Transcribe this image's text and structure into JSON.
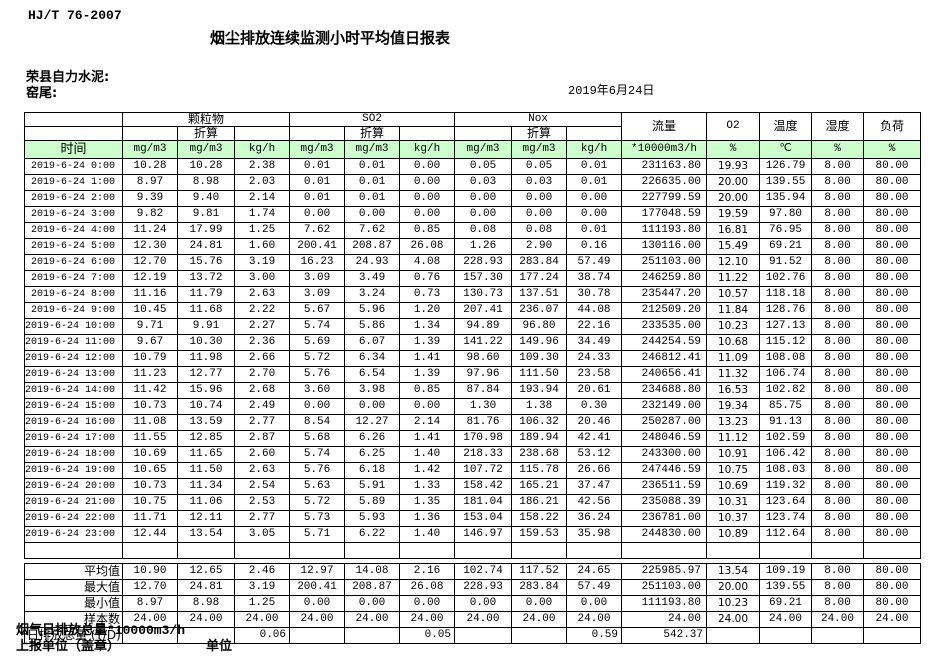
{
  "page": {
    "standard_code": "HJ/T 76-2007",
    "title": "烟尘排放连续监测小时平均值日报表",
    "company": "荣县自力水泥:",
    "location": "窑尾:",
    "date": "2019年6月24日"
  },
  "table": {
    "time_label": "时间",
    "group_particulate": "颗粒物",
    "group_so2": "SO2",
    "group_nox": "Nox",
    "converted_label": "折算",
    "flow_label": "流量",
    "o2_label": "O2",
    "temp_label": "温度",
    "humidity_label": "湿度",
    "load_label": "负荷",
    "units": [
      "mg/m3",
      "mg/m3",
      "kg/h",
      "mg/m3",
      "mg/m3",
      "kg/h",
      "mg/m3",
      "mg/m3",
      "kg/h",
      "*10000m3/h",
      "%",
      "℃",
      "%",
      "%"
    ],
    "rows": [
      {
        "time": "2019-6-24 0:00",
        "values": [
          "10.28",
          "10.28",
          "2.38",
          "0.01",
          "0.01",
          "0.00",
          "0.05",
          "0.05",
          "0.01",
          "231163.80",
          "19.93",
          "126.79",
          "8.00",
          "80.00"
        ]
      },
      {
        "time": "2019-6-24 1:00",
        "values": [
          "8.97",
          "8.98",
          "2.03",
          "0.01",
          "0.01",
          "0.00",
          "0.03",
          "0.03",
          "0.01",
          "226635.00",
          "20.00",
          "139.55",
          "8.00",
          "80.00"
        ]
      },
      {
        "time": "2019-6-24 2:00",
        "values": [
          "9.39",
          "9.40",
          "2.14",
          "0.01",
          "0.01",
          "0.00",
          "0.00",
          "0.00",
          "0.00",
          "227799.59",
          "20.00",
          "135.94",
          "8.00",
          "80.00"
        ]
      },
      {
        "time": "2019-6-24 3:00",
        "values": [
          "9.82",
          "9.81",
          "1.74",
          "0.00",
          "0.00",
          "0.00",
          "0.00",
          "0.00",
          "0.00",
          "177048.59",
          "19.59",
          "97.80",
          "8.00",
          "80.00"
        ]
      },
      {
        "time": "2019-6-24 4:00",
        "values": [
          "11.24",
          "17.99",
          "1.25",
          "7.62",
          "7.62",
          "0.85",
          "0.08",
          "0.08",
          "0.01",
          "111193.80",
          "16.81",
          "76.95",
          "8.00",
          "80.00"
        ]
      },
      {
        "time": "2019-6-24 5:00",
        "values": [
          "12.30",
          "24.81",
          "1.60",
          "200.41",
          "208.87",
          "26.08",
          "1.26",
          "2.90",
          "0.16",
          "130116.00",
          "15.49",
          "69.21",
          "8.00",
          "80.00"
        ]
      },
      {
        "time": "2019-6-24 6:00",
        "values": [
          "12.70",
          "15.76",
          "3.19",
          "16.23",
          "24.93",
          "4.08",
          "228.93",
          "283.84",
          "57.49",
          "251103.00",
          "12.10",
          "91.52",
          "8.00",
          "80.00"
        ]
      },
      {
        "time": "2019-6-24 7:00",
        "values": [
          "12.19",
          "13.72",
          "3.00",
          "3.09",
          "3.49",
          "0.76",
          "157.30",
          "177.24",
          "38.74",
          "246259.80",
          "11.22",
          "102.76",
          "8.00",
          "80.00"
        ]
      },
      {
        "time": "2019-6-24 8:00",
        "values": [
          "11.16",
          "11.79",
          "2.63",
          "3.09",
          "3.24",
          "0.73",
          "130.73",
          "137.51",
          "30.78",
          "235447.20",
          "10.57",
          "118.18",
          "8.00",
          "80.00"
        ]
      },
      {
        "time": "2019-6-24 9:00",
        "values": [
          "10.45",
          "11.68",
          "2.22",
          "5.67",
          "5.96",
          "1.20",
          "207.41",
          "236.07",
          "44.08",
          "212509.20",
          "11.84",
          "128.76",
          "8.00",
          "80.00"
        ]
      },
      {
        "time": "2019-6-24 10:00",
        "values": [
          "9.71",
          "9.91",
          "2.27",
          "5.74",
          "5.86",
          "1.34",
          "94.89",
          "96.80",
          "22.16",
          "233535.00",
          "10.23",
          "127.13",
          "8.00",
          "80.00"
        ]
      },
      {
        "time": "2019-6-24 11:00",
        "values": [
          "9.67",
          "10.30",
          "2.36",
          "5.69",
          "6.07",
          "1.39",
          "141.22",
          "149.96",
          "34.49",
          "244254.59",
          "10.68",
          "115.12",
          "8.00",
          "80.00"
        ]
      },
      {
        "time": "2019-6-24 12:00",
        "values": [
          "10.79",
          "11.98",
          "2.66",
          "5.72",
          "6.34",
          "1.41",
          "98.60",
          "109.30",
          "24.33",
          "246812.41",
          "11.09",
          "108.08",
          "8.00",
          "80.00"
        ]
      },
      {
        "time": "2019-6-24 13:00",
        "values": [
          "11.23",
          "12.77",
          "2.70",
          "5.76",
          "6.54",
          "1.39",
          "97.96",
          "111.50",
          "23.58",
          "240656.41",
          "11.32",
          "106.74",
          "8.00",
          "80.00"
        ]
      },
      {
        "time": "2019-6-24 14:00",
        "values": [
          "11.42",
          "15.96",
          "2.68",
          "3.60",
          "3.98",
          "0.85",
          "87.84",
          "193.94",
          "20.61",
          "234688.80",
          "16.53",
          "102.82",
          "8.00",
          "80.00"
        ]
      },
      {
        "time": "2019-6-24 15:00",
        "values": [
          "10.73",
          "10.74",
          "2.49",
          "0.00",
          "0.00",
          "0.00",
          "1.30",
          "1.38",
          "0.30",
          "232149.00",
          "19.34",
          "85.75",
          "8.00",
          "80.00"
        ]
      },
      {
        "time": "2019-6-24 16:00",
        "values": [
          "11.08",
          "13.59",
          "2.77",
          "8.54",
          "12.27",
          "2.14",
          "81.76",
          "106.32",
          "20.46",
          "250287.00",
          "13.23",
          "91.13",
          "8.00",
          "80.00"
        ]
      },
      {
        "time": "2019-6-24 17:00",
        "values": [
          "11.55",
          "12.85",
          "2.87",
          "5.68",
          "6.26",
          "1.41",
          "170.98",
          "189.94",
          "42.41",
          "248046.59",
          "11.12",
          "102.59",
          "8.00",
          "80.00"
        ]
      },
      {
        "time": "2019-6-24 18:00",
        "values": [
          "10.69",
          "11.65",
          "2.60",
          "5.74",
          "6.25",
          "1.40",
          "218.33",
          "238.68",
          "53.12",
          "243300.00",
          "10.91",
          "106.42",
          "8.00",
          "80.00"
        ]
      },
      {
        "time": "2019-6-24 19:00",
        "values": [
          "10.65",
          "11.50",
          "2.63",
          "5.76",
          "6.18",
          "1.42",
          "107.72",
          "115.78",
          "26.66",
          "247446.59",
          "10.75",
          "108.03",
          "8.00",
          "80.00"
        ]
      },
      {
        "time": "2019-6-24 20:00",
        "values": [
          "10.73",
          "11.34",
          "2.54",
          "5.63",
          "5.91",
          "1.33",
          "158.42",
          "165.21",
          "37.47",
          "236511.59",
          "10.69",
          "119.32",
          "8.00",
          "80.00"
        ]
      },
      {
        "time": "2019-6-24 21:00",
        "values": [
          "10.75",
          "11.06",
          "2.53",
          "5.72",
          "5.89",
          "1.35",
          "181.04",
          "186.21",
          "42.56",
          "235088.39",
          "10.31",
          "123.64",
          "8.00",
          "80.00"
        ]
      },
      {
        "time": "2019-6-24 22:00",
        "values": [
          "11.71",
          "12.11",
          "2.77",
          "5.73",
          "5.93",
          "1.36",
          "153.04",
          "158.22",
          "36.24",
          "236781.00",
          "10.37",
          "123.74",
          "8.00",
          "80.00"
        ]
      },
      {
        "time": "2019-6-24 23:00",
        "values": [
          "12.44",
          "13.54",
          "3.05",
          "5.71",
          "6.22",
          "1.40",
          "146.97",
          "159.53",
          "35.98",
          "244830.00",
          "10.89",
          "112.64",
          "8.00",
          "80.00"
        ]
      }
    ],
    "summary": [
      {
        "label": "平均值",
        "values": [
          "10.90",
          "12.65",
          "2.46",
          "12.97",
          "14.08",
          "2.16",
          "102.74",
          "117.52",
          "24.65",
          "225985.97",
          "13.54",
          "109.19",
          "8.00",
          "80.00"
        ]
      },
      {
        "label": "最大值",
        "values": [
          "12.70",
          "24.81",
          "3.19",
          "200.41",
          "208.87",
          "26.08",
          "228.93",
          "283.84",
          "57.49",
          "251103.00",
          "20.00",
          "139.55",
          "8.00",
          "80.00"
        ]
      },
      {
        "label": "最小值",
        "values": [
          "8.97",
          "8.98",
          "1.25",
          "0.00",
          "0.00",
          "0.00",
          "0.00",
          "0.00",
          "0.00",
          "111193.80",
          "10.23",
          "69.21",
          "8.00",
          "80.00"
        ]
      },
      {
        "label": "样本数",
        "values": [
          "24.00",
          "24.00",
          "24.00",
          "24.00",
          "24.00",
          "24.00",
          "24.00",
          "24.00",
          "24.00",
          "24.00",
          "24.00",
          "24.00",
          "24.00",
          "24.00"
        ]
      },
      {
        "label": "日排放总量 (T/D)",
        "values": [
          "",
          "",
          "0.06",
          "",
          "",
          "0.05",
          "",
          "",
          "0.59",
          "542.37",
          "",
          "",
          "",
          ""
        ]
      }
    ]
  },
  "footer": {
    "note": "烟气日排放总量*10000m3/h",
    "report_unit": "上报单位（盖章）",
    "unit": "单位"
  }
}
